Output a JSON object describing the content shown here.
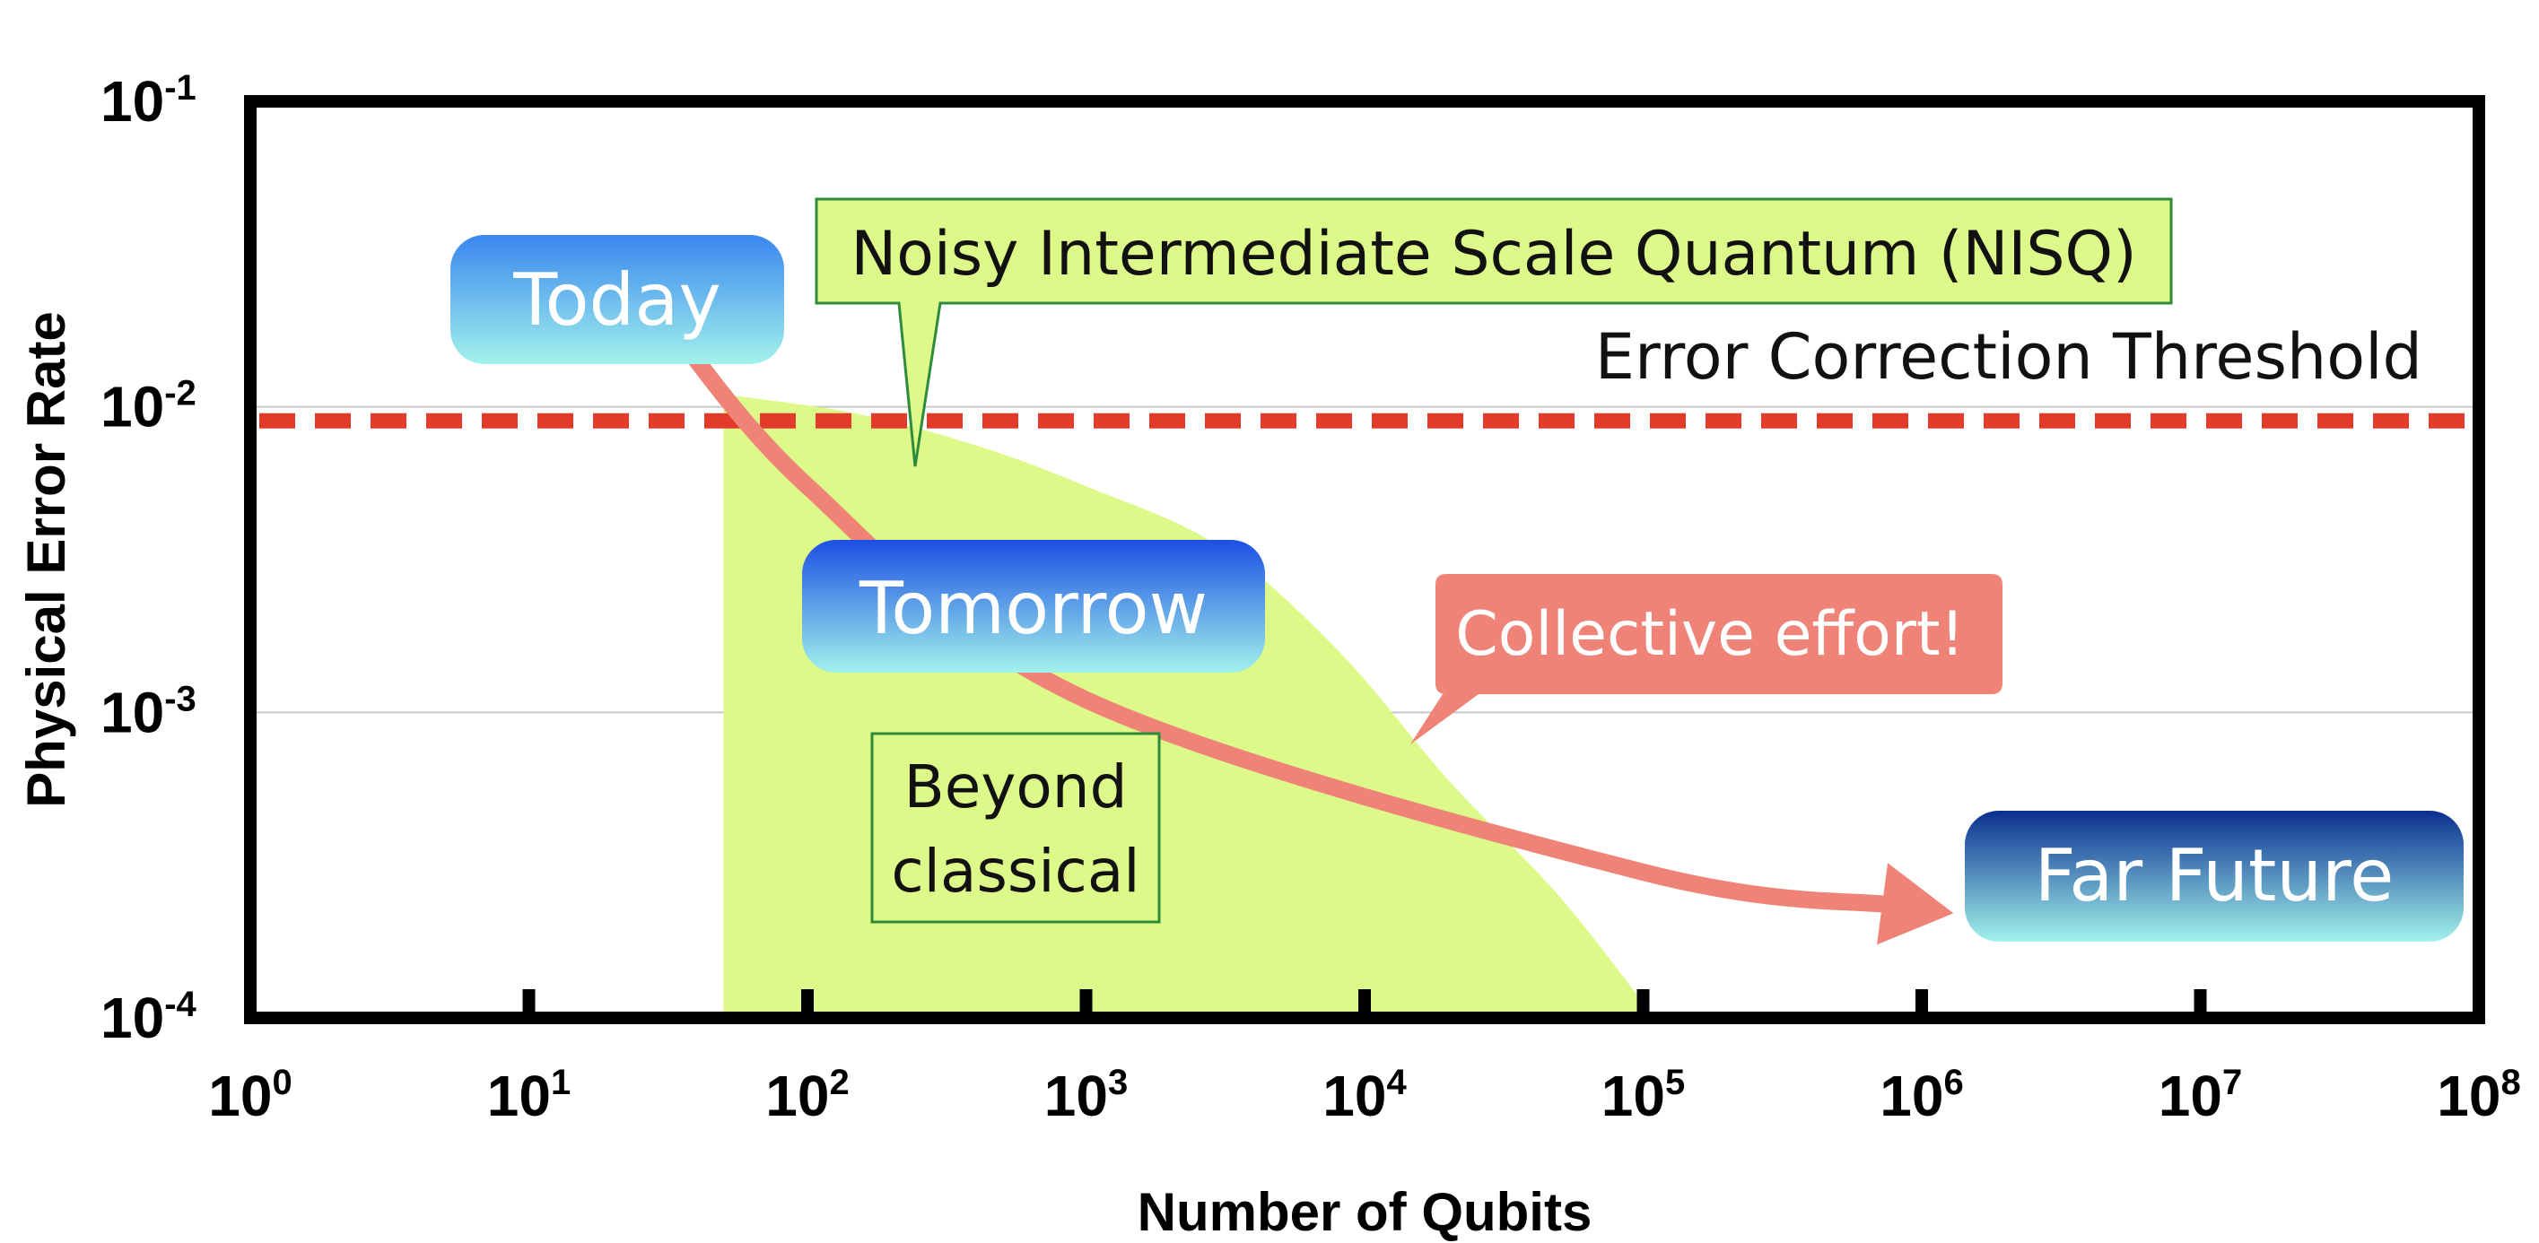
{
  "chart_data": {
    "type": "area",
    "title": "",
    "xlabel": "Number of Qubits",
    "ylabel": "Physical Error Rate",
    "x_scale": "log",
    "y_scale": "log",
    "xlim": [
      1,
      100000000
    ],
    "ylim": [
      0.0001,
      0.1
    ],
    "grid": "horizontal",
    "x_ticks": [
      {
        "base": "10",
        "exp": "0",
        "value": 1
      },
      {
        "base": "10",
        "exp": "1",
        "value": 10
      },
      {
        "base": "10",
        "exp": "2",
        "value": 100
      },
      {
        "base": "10",
        "exp": "3",
        "value": 1000
      },
      {
        "base": "10",
        "exp": "4",
        "value": 10000
      },
      {
        "base": "10",
        "exp": "5",
        "value": 100000
      },
      {
        "base": "10",
        "exp": "6",
        "value": 1000000
      },
      {
        "base": "10",
        "exp": "7",
        "value": 10000000
      },
      {
        "base": "10",
        "exp": "8",
        "value": 100000000
      }
    ],
    "y_ticks": [
      {
        "base": "10",
        "exp": "-1",
        "value": 0.1
      },
      {
        "base": "10",
        "exp": "-2",
        "value": 0.01
      },
      {
        "base": "10",
        "exp": "-3",
        "value": 0.001
      },
      {
        "base": "10",
        "exp": "-4",
        "value": 0.0001
      }
    ],
    "threshold": {
      "label": "Error Correction Threshold",
      "y": 0.009,
      "color": "#e23b2c"
    },
    "nisq_region": {
      "color": "#ddf98a",
      "boundary": [
        {
          "x": 50,
          "y": 0.011
        },
        {
          "x": 150,
          "y": 0.0095
        },
        {
          "x": 400,
          "y": 0.0075
        },
        {
          "x": 1000,
          "y": 0.0055
        },
        {
          "x": 3000,
          "y": 0.0035
        },
        {
          "x": 8000,
          "y": 0.0016
        },
        {
          "x": 20000,
          "y": 0.0006
        },
        {
          "x": 50000,
          "y": 0.00025
        },
        {
          "x": 110000,
          "y": 0.0001
        }
      ]
    },
    "trajectory": {
      "color": "#ef8377",
      "points": [
        {
          "x": 30,
          "y": 0.02
        },
        {
          "x": 100,
          "y": 0.0055
        },
        {
          "x": 1000,
          "y": 0.0011
        },
        {
          "x": 100000,
          "y": 0.0003
        },
        {
          "x": 1300000,
          "y": 0.00022
        }
      ]
    },
    "annotations": [
      {
        "text": "Today",
        "color_top": "#3a86ef",
        "color_bottom": "#a2f2ec"
      },
      {
        "text": "Tomorrow",
        "color_top": "#1b4fe3",
        "color_bottom": "#a2f2ec"
      },
      {
        "text": "Far Future",
        "color_top": "#0a2f8f",
        "color_bottom": "#a2f2ec"
      },
      {
        "text": "Noisy Intermediate Scale Quantum (NISQ)",
        "background": "#ddf98a",
        "border": "#2e8b3a"
      },
      {
        "text": "Collective effort!",
        "background": "#ef8377"
      },
      {
        "text_lines": [
          "Beyond",
          "classical"
        ],
        "background": "#ddf98a",
        "border": "#2e8b3a"
      }
    ]
  }
}
